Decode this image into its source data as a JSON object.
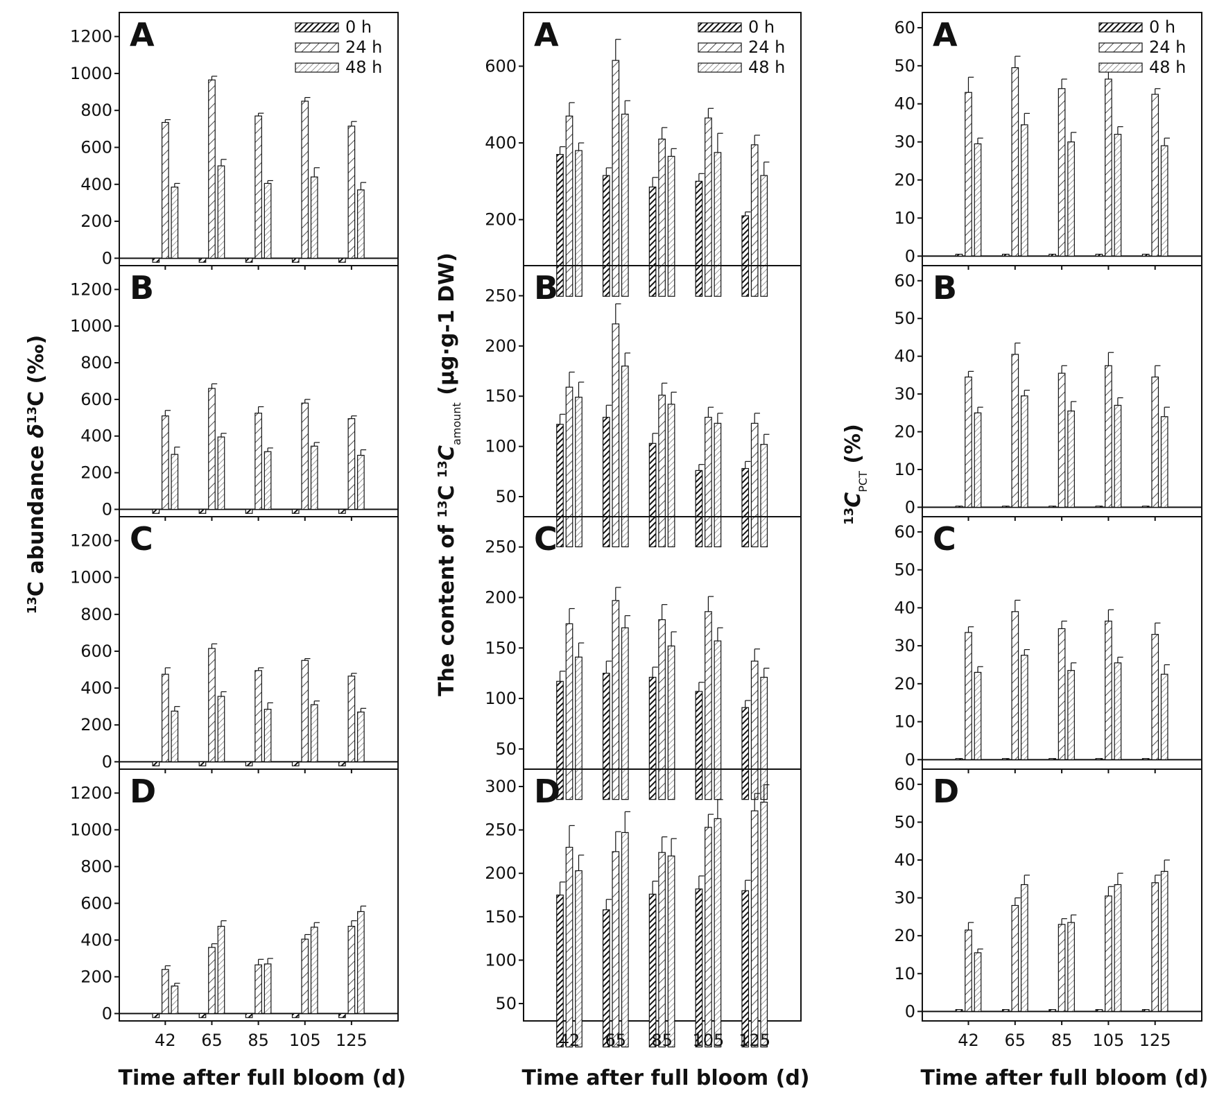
{
  "figure": {
    "columns": [
      {
        "ylabel_main": "C abundance ",
        "ylabel_sup1": "13",
        "ylabel_delta": "δ",
        "ylabel_sup2": "13",
        "ylabel_c": "C (‰)",
        "xlabel": "Time after full bloom (d)"
      },
      {
        "ylabel_main": "The content of ",
        "ylabel_sup1": "13",
        "ylabel_c1": "C ",
        "ylabel_sup2": "13",
        "ylabel_c2": "C",
        "ylabel_sub": "amount",
        "ylabel_unit": " (μg·g-1 DW)",
        "xlabel": "Time after full bloom (d)"
      },
      {
        "ylabel_sup1": "13",
        "ylabel_c": "C",
        "ylabel_sub": "PCT",
        "ylabel_unit": " (%)",
        "xlabel": "Time after full bloom (d)"
      }
    ],
    "legend": [
      "0 h",
      "24 h",
      "48 h"
    ]
  },
  "chart_data": [
    {
      "type": "bar",
      "column": 1,
      "panel": "A",
      "categories": [
        "42",
        "65",
        "85",
        "105",
        "125"
      ],
      "yticks": [
        0,
        200,
        400,
        600,
        800,
        1000,
        1200
      ],
      "ylim": [
        -40,
        1330
      ],
      "legend": true,
      "series": [
        {
          "name": "0 h",
          "values": [
            -22,
            -22,
            -22,
            -22,
            -22
          ],
          "errors": [
            0,
            0,
            0,
            0,
            0
          ]
        },
        {
          "name": "24 h",
          "values": [
            735,
            965,
            770,
            850,
            715
          ],
          "errors": [
            15,
            20,
            15,
            20,
            25
          ]
        },
        {
          "name": "48 h",
          "values": [
            385,
            500,
            405,
            440,
            370
          ],
          "errors": [
            20,
            35,
            15,
            50,
            40
          ]
        }
      ]
    },
    {
      "type": "bar",
      "column": 1,
      "panel": "B",
      "categories": [
        "42",
        "65",
        "85",
        "105",
        "125"
      ],
      "yticks": [
        0,
        200,
        400,
        600,
        800,
        1000,
        1200
      ],
      "ylim": [
        -40,
        1330
      ],
      "series": [
        {
          "name": "0 h",
          "values": [
            -22,
            -22,
            -22,
            -22,
            -22
          ],
          "errors": [
            0,
            0,
            0,
            0,
            0
          ]
        },
        {
          "name": "24 h",
          "values": [
            510,
            660,
            525,
            580,
            495
          ],
          "errors": [
            30,
            25,
            35,
            20,
            15
          ]
        },
        {
          "name": "48 h",
          "values": [
            300,
            395,
            315,
            345,
            295
          ],
          "errors": [
            40,
            20,
            20,
            20,
            30
          ]
        }
      ]
    },
    {
      "type": "bar",
      "column": 1,
      "panel": "C",
      "categories": [
        "42",
        "65",
        "85",
        "105",
        "125"
      ],
      "yticks": [
        0,
        200,
        400,
        600,
        800,
        1000,
        1200
      ],
      "ylim": [
        -40,
        1330
      ],
      "series": [
        {
          "name": "0 h",
          "values": [
            -22,
            -22,
            -22,
            -22,
            -22
          ],
          "errors": [
            0,
            0,
            0,
            0,
            0
          ]
        },
        {
          "name": "24 h",
          "values": [
            475,
            615,
            495,
            550,
            465
          ],
          "errors": [
            35,
            25,
            15,
            10,
            15
          ]
        },
        {
          "name": "48 h",
          "values": [
            275,
            355,
            285,
            310,
            270
          ],
          "errors": [
            25,
            25,
            35,
            20,
            20
          ]
        }
      ]
    },
    {
      "type": "bar",
      "column": 1,
      "panel": "D",
      "categories": [
        "42",
        "65",
        "85",
        "105",
        "125"
      ],
      "yticks": [
        0,
        200,
        400,
        600,
        800,
        1000,
        1200
      ],
      "ylim": [
        -40,
        1330
      ],
      "series": [
        {
          "name": "0 h",
          "values": [
            -22,
            -22,
            -22,
            -22,
            -22
          ],
          "errors": [
            0,
            0,
            0,
            0,
            0
          ]
        },
        {
          "name": "24 h",
          "values": [
            240,
            360,
            265,
            405,
            475
          ],
          "errors": [
            20,
            20,
            30,
            25,
            30
          ]
        },
        {
          "name": "48 h",
          "values": [
            150,
            475,
            270,
            470,
            555
          ],
          "errors": [
            15,
            30,
            30,
            25,
            30
          ]
        }
      ]
    },
    {
      "type": "bar",
      "column": 2,
      "panel": "A",
      "categories": [
        "42",
        "65",
        "85",
        "105",
        "125"
      ],
      "yticks": [
        200,
        400,
        600
      ],
      "ylim": [
        80,
        740
      ],
      "legend": true,
      "series": [
        {
          "name": "0 h",
          "values": [
            370,
            315,
            285,
            300,
            210
          ],
          "errors": [
            20,
            20,
            25,
            20,
            10
          ]
        },
        {
          "name": "24 h",
          "values": [
            470,
            615,
            410,
            465,
            395
          ],
          "errors": [
            35,
            55,
            30,
            25,
            25
          ]
        },
        {
          "name": "48 h",
          "values": [
            380,
            475,
            365,
            375,
            315
          ],
          "errors": [
            20,
            35,
            20,
            50,
            35
          ]
        }
      ]
    },
    {
      "type": "bar",
      "column": 2,
      "panel": "B",
      "categories": [
        "42",
        "65",
        "85",
        "105",
        "125"
      ],
      "yticks": [
        50,
        100,
        150,
        200,
        250
      ],
      "ylim": [
        30,
        280
      ],
      "series": [
        {
          "name": "0 h",
          "values": [
            122,
            129,
            103,
            76,
            78
          ],
          "errors": [
            10,
            12,
            10,
            6,
            7
          ]
        },
        {
          "name": "24 h",
          "values": [
            159,
            222,
            151,
            129,
            123
          ],
          "errors": [
            15,
            20,
            12,
            10,
            10
          ]
        },
        {
          "name": "48 h",
          "values": [
            149,
            180,
            142,
            123,
            102
          ],
          "errors": [
            15,
            13,
            12,
            10,
            10
          ]
        }
      ]
    },
    {
      "type": "bar",
      "column": 2,
      "panel": "C",
      "categories": [
        "42",
        "65",
        "85",
        "105",
        "125"
      ],
      "yticks": [
        50,
        100,
        150,
        200,
        250
      ],
      "ylim": [
        30,
        280
      ],
      "series": [
        {
          "name": "0 h",
          "values": [
            117,
            125,
            121,
            107,
            91
          ],
          "errors": [
            10,
            12,
            10,
            9,
            7
          ]
        },
        {
          "name": "24 h",
          "values": [
            174,
            197,
            178,
            186,
            137
          ],
          "errors": [
            15,
            13,
            15,
            15,
            12
          ]
        },
        {
          "name": "48 h",
          "values": [
            141,
            170,
            152,
            157,
            121
          ],
          "errors": [
            14,
            12,
            14,
            13,
            9
          ]
        }
      ]
    },
    {
      "type": "bar",
      "column": 2,
      "panel": "D",
      "categories": [
        "42",
        "65",
        "85",
        "105",
        "125"
      ],
      "yticks": [
        50,
        100,
        150,
        200,
        250,
        300
      ],
      "ylim": [
        30,
        320
      ],
      "series": [
        {
          "name": "0 h",
          "values": [
            175,
            158,
            176,
            182,
            180
          ],
          "errors": [
            15,
            12,
            15,
            15,
            12
          ]
        },
        {
          "name": "24 h",
          "values": [
            230,
            225,
            224,
            253,
            272
          ],
          "errors": [
            25,
            23,
            18,
            15,
            20
          ]
        },
        {
          "name": "48 h",
          "values": [
            203,
            247,
            220,
            263,
            282
          ],
          "errors": [
            18,
            24,
            20,
            22,
            20
          ]
        }
      ]
    },
    {
      "type": "bar",
      "column": 3,
      "panel": "A",
      "categories": [
        "42",
        "65",
        "85",
        "105",
        "125"
      ],
      "yticks": [
        0,
        10,
        20,
        30,
        40,
        50,
        60
      ],
      "ylim": [
        -2.5,
        64
      ],
      "legend": true,
      "series": [
        {
          "name": "0 h",
          "values": [
            0.5,
            0.5,
            0.5,
            0.5,
            0.5
          ],
          "errors": [
            0,
            0,
            0,
            0,
            0
          ]
        },
        {
          "name": "24 h",
          "values": [
            43,
            49.5,
            44,
            46.5,
            42.5
          ],
          "errors": [
            4,
            3,
            2.5,
            4,
            1.5
          ]
        },
        {
          "name": "48 h",
          "values": [
            29.5,
            34.5,
            30,
            32,
            29
          ],
          "errors": [
            1.5,
            3,
            2.5,
            2,
            2
          ]
        }
      ]
    },
    {
      "type": "bar",
      "column": 3,
      "panel": "B",
      "categories": [
        "42",
        "65",
        "85",
        "105",
        "125"
      ],
      "yticks": [
        0,
        10,
        20,
        30,
        40,
        50,
        60
      ],
      "ylim": [
        -2.5,
        64
      ],
      "series": [
        {
          "name": "0 h",
          "values": [
            0.3,
            0.3,
            0.3,
            0.3,
            0.3
          ],
          "errors": [
            0,
            0,
            0,
            0,
            0
          ]
        },
        {
          "name": "24 h",
          "values": [
            34.5,
            40.5,
            35.5,
            37.5,
            34.5
          ],
          "errors": [
            1.5,
            3,
            2,
            3.5,
            3
          ]
        },
        {
          "name": "48 h",
          "values": [
            25,
            29.5,
            25.5,
            27,
            24
          ],
          "errors": [
            1.5,
            1.5,
            2.5,
            2,
            2.5
          ]
        }
      ]
    },
    {
      "type": "bar",
      "column": 3,
      "panel": "C",
      "categories": [
        "42",
        "65",
        "85",
        "105",
        "125"
      ],
      "yticks": [
        0,
        10,
        20,
        30,
        40,
        50,
        60
      ],
      "ylim": [
        -2.5,
        64
      ],
      "series": [
        {
          "name": "0 h",
          "values": [
            0.3,
            0.3,
            0.3,
            0.3,
            0.3
          ],
          "errors": [
            0,
            0,
            0,
            0,
            0
          ]
        },
        {
          "name": "24 h",
          "values": [
            33.5,
            39,
            34.5,
            36.5,
            33
          ],
          "errors": [
            1.5,
            3,
            2,
            3,
            3
          ]
        },
        {
          "name": "48 h",
          "values": [
            23,
            27.5,
            23.5,
            25.5,
            22.5
          ],
          "errors": [
            1.5,
            1.5,
            2,
            1.5,
            2.5
          ]
        }
      ]
    },
    {
      "type": "bar",
      "column": 3,
      "panel": "D",
      "categories": [
        "42",
        "65",
        "85",
        "105",
        "125"
      ],
      "yticks": [
        0,
        10,
        20,
        30,
        40,
        50,
        60
      ],
      "ylim": [
        -2.5,
        64
      ],
      "series": [
        {
          "name": "0 h",
          "values": [
            0.5,
            0.5,
            0.5,
            0.5,
            0.5
          ],
          "errors": [
            0,
            0,
            0,
            0,
            0
          ]
        },
        {
          "name": "24 h",
          "values": [
            21.5,
            28,
            23,
            30.5,
            34
          ],
          "errors": [
            2,
            2,
            1.5,
            2.5,
            2
          ]
        },
        {
          "name": "48 h",
          "values": [
            15.5,
            33.5,
            23.5,
            33.5,
            37
          ],
          "errors": [
            1,
            2.5,
            2,
            3,
            3
          ]
        }
      ]
    }
  ]
}
